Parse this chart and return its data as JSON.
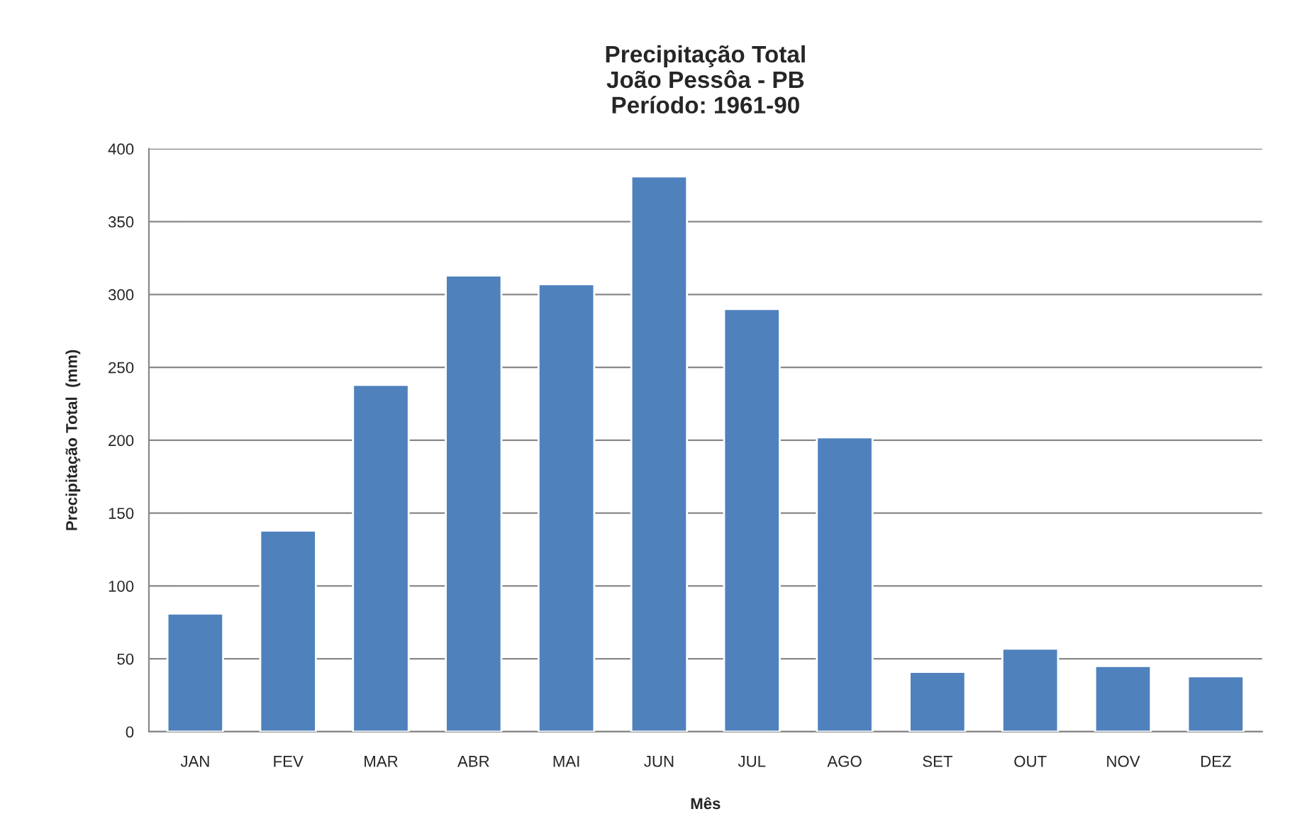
{
  "chart_data": {
    "type": "bar",
    "title": "Precipitação Total\nJoão Pessôa - PB\nPeríodo: 1961-90",
    "xlabel": "Mês",
    "ylabel": "Precipitação Total  (mm)",
    "categories": [
      "JAN",
      "FEV",
      "MAR",
      "ABR",
      "MAI",
      "JUN",
      "JUL",
      "AGO",
      "SET",
      "OUT",
      "NOV",
      "DEZ"
    ],
    "values": [
      81,
      138,
      238,
      313,
      307,
      381,
      290,
      202,
      41,
      57,
      45,
      38
    ],
    "color": "#4f81bd",
    "ylim": [
      0,
      400
    ],
    "yticks": [
      0,
      50,
      100,
      150,
      200,
      250,
      300,
      350,
      400
    ],
    "grid": "y",
    "legend": false
  }
}
